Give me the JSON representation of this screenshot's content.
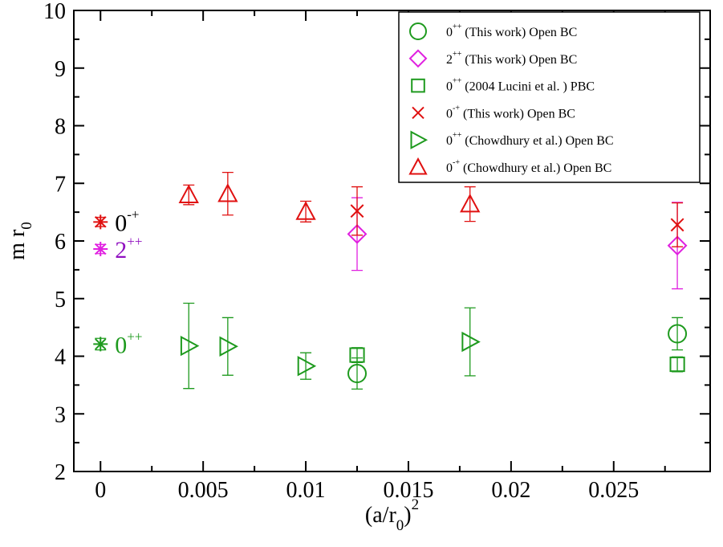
{
  "chart_data": {
    "type": "scatter",
    "xlim": [
      -0.0013,
      0.0297
    ],
    "ylim": [
      2,
      10
    ],
    "x_ticks": [
      "0",
      "0.005",
      "0.01",
      "0.015",
      "0.02",
      "0.025"
    ],
    "x_tick_values": [
      0,
      0.005,
      0.01,
      0.015,
      0.02,
      0.025
    ],
    "y_ticks": [
      "2",
      "3",
      "4",
      "5",
      "6",
      "7",
      "8",
      "9",
      "10"
    ],
    "y_tick_values": [
      2,
      3,
      4,
      5,
      6,
      7,
      8,
      9,
      10
    ],
    "xlabel": {
      "main": "(a/r",
      "sub": "0",
      "close": ")",
      "sup": "2"
    },
    "ylabel": {
      "main": "m r",
      "sub": "0"
    },
    "grid": false,
    "legend_position": "top-right",
    "series": [
      {
        "id": "s1",
        "name_state": "0",
        "name_sup": "++",
        "name_rest": "(This work) Open BC",
        "marker": "circle",
        "color": "#1e9a1e",
        "points": [
          {
            "x": 0.0125,
            "y": 3.7,
            "err": 0.27
          },
          {
            "x": 0.0281,
            "y": 4.39,
            "err": 0.28
          }
        ]
      },
      {
        "id": "s2",
        "name_state": "2",
        "name_sup": "++",
        "name_rest": "(This work) Open BC",
        "marker": "diamond",
        "color": "#e020e0",
        "points": [
          {
            "x": 0.0125,
            "y": 6.12,
            "err": 0.63
          },
          {
            "x": 0.0281,
            "y": 5.92,
            "err": 0.75
          }
        ]
      },
      {
        "id": "s3",
        "name_state": "0",
        "name_sup": "++",
        "name_rest": " (2004 Lucini et al. ) PBC",
        "marker": "square",
        "color": "#1e9a1e",
        "points": [
          {
            "x": 0.0125,
            "y": 4.02,
            "err": 0.13
          },
          {
            "x": 0.0281,
            "y": 3.86,
            "err": 0.13
          }
        ]
      },
      {
        "id": "s4",
        "name_state": "0",
        "name_sup": "-+",
        "name_rest": "(This work) Open BC",
        "marker": "x",
        "color": "#e01010",
        "points": [
          {
            "x": 0.0125,
            "y": 6.52,
            "err": 0.42
          },
          {
            "x": 0.0281,
            "y": 6.28,
            "err": 0.38
          }
        ]
      },
      {
        "id": "s5",
        "name_state": "0",
        "name_sup": "++",
        "name_rest": "(Chowdhury et al.) Open BC",
        "marker": "triangle-right",
        "color": "#1e9a1e",
        "points": [
          {
            "x": 0.0043,
            "y": 4.18,
            "err": 0.74
          },
          {
            "x": 0.0062,
            "y": 4.17,
            "err": 0.5
          },
          {
            "x": 0.01,
            "y": 3.83,
            "err": 0.23
          },
          {
            "x": 0.018,
            "y": 4.25,
            "err": 0.59
          }
        ]
      },
      {
        "id": "s6",
        "name_state": "0",
        "name_sup": "-+",
        "name_rest": "(Chowdhury et al.) Open BC",
        "marker": "triangle-up",
        "color": "#e01010",
        "points": [
          {
            "x": 0.0043,
            "y": 6.8,
            "err": 0.17
          },
          {
            "x": 0.0062,
            "y": 6.82,
            "err": 0.37
          },
          {
            "x": 0.01,
            "y": 6.51,
            "err": 0.18
          },
          {
            "x": 0.018,
            "y": 6.64,
            "err": 0.3
          }
        ]
      }
    ],
    "continuum_points": [
      {
        "id": "c1",
        "x": 0,
        "y": 6.33,
        "err": 0.08,
        "color": "#e01010",
        "label_state": "0",
        "label_sup": "-+",
        "label_color": "#000000"
      },
      {
        "id": "c2",
        "x": 0,
        "y": 5.86,
        "err": 0.08,
        "color": "#e020e0",
        "label_state": "2",
        "label_sup": "++",
        "label_color": "#9010c0"
      },
      {
        "id": "c3",
        "x": 0,
        "y": 4.21,
        "err": 0.1,
        "color": "#1e9a1e",
        "label_state": "0",
        "label_sup": "++",
        "label_color": "#1e9a1e"
      }
    ]
  }
}
